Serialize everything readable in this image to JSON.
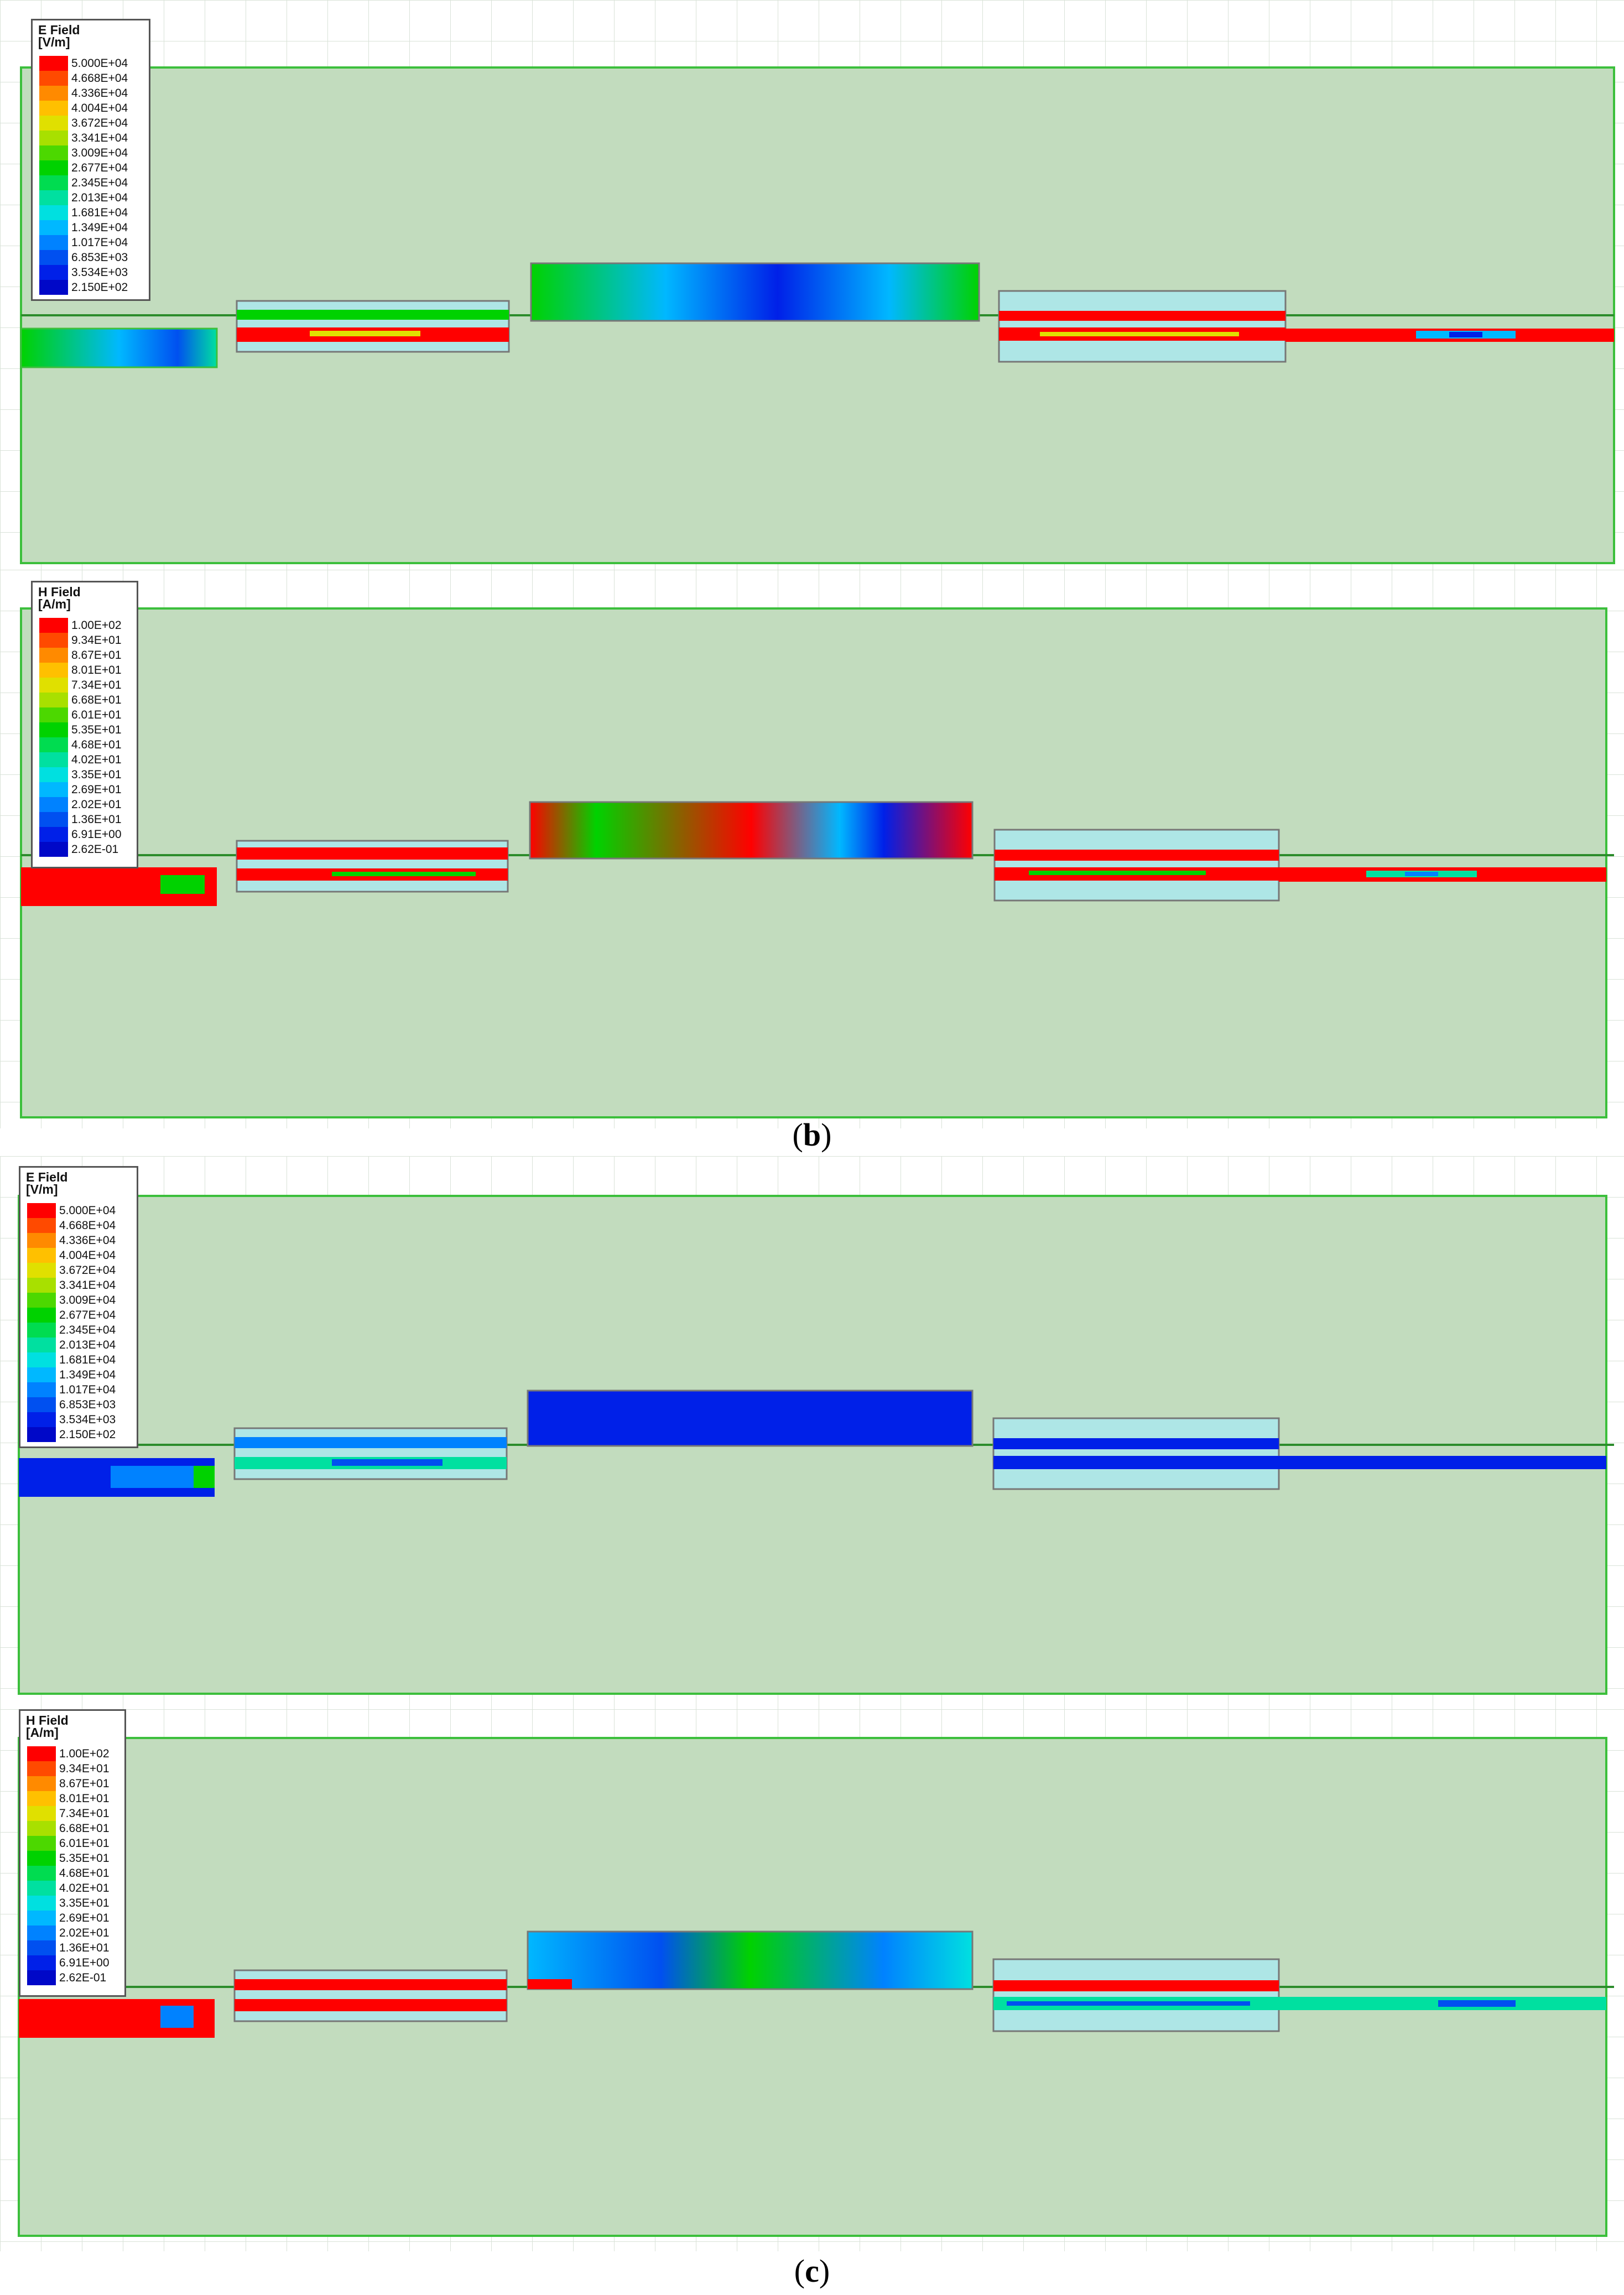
{
  "figure": {
    "captions": {
      "b": "b",
      "c": "c"
    }
  },
  "legends": {
    "e_field": {
      "title_line1": "E Field",
      "title_line2": "[V/m]",
      "values": [
        "5.000E+04",
        "4.668E+04",
        "4.336E+04",
        "4.004E+04",
        "3.672E+04",
        "3.341E+04",
        "3.009E+04",
        "2.677E+04",
        "2.345E+04",
        "2.013E+04",
        "1.681E+04",
        "1.349E+04",
        "1.017E+04",
        "6.853E+03",
        "3.534E+03",
        "2.150E+02"
      ]
    },
    "h_field": {
      "title_line1": "H Field",
      "title_line2": "[A/m]",
      "values": [
        "1.00E+02",
        "9.34E+01",
        "8.67E+01",
        "8.01E+01",
        "7.34E+01",
        "6.68E+01",
        "6.01E+01",
        "5.35E+01",
        "4.68E+01",
        "4.02E+01",
        "3.35E+01",
        "2.69E+01",
        "2.02E+01",
        "1.36E+01",
        "6.91E+00",
        "2.62E-01"
      ]
    }
  },
  "colors": {
    "scale": [
      "#ff0000",
      "#ff4a00",
      "#ff8a00",
      "#ffc000",
      "#e0e000",
      "#a8e000",
      "#4cd800",
      "#00d200",
      "#00dc50",
      "#00e0a0",
      "#00e0e0",
      "#00b8ff",
      "#0082ff",
      "#0050f0",
      "#0020e8",
      "#0008c8"
    ],
    "background_air": "#c2dcbe",
    "substrate_outline": "#3cbf3c",
    "cyan_box": "#aee6e6",
    "grid": "#d6e3d4"
  }
}
